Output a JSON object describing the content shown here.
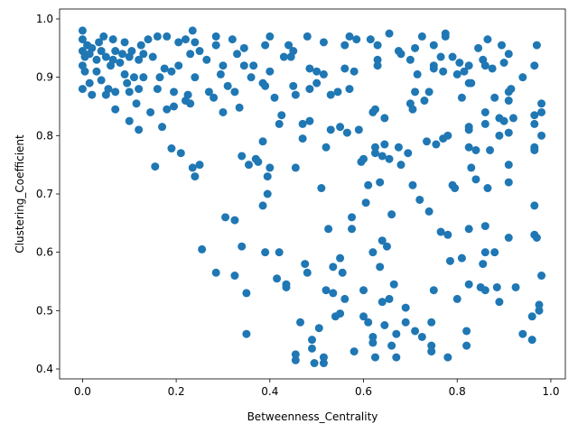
{
  "chart_data": {
    "type": "scatter",
    "xlabel": "Betweenness_Centrality",
    "ylabel": "Clustering_Coefficient",
    "color": "#1f77b4",
    "xlim": [
      -0.049,
      1.031
    ],
    "ylim": [
      0.383,
      1.017
    ],
    "xticks": [
      {
        "value": 0,
        "label": "0.0"
      },
      0.2,
      0.4,
      0.6,
      0.8,
      {
        "value": 1,
        "label": "1.0"
      }
    ],
    "yticks": [
      0.4,
      0.5,
      0.6,
      0.7,
      0.8,
      0.9,
      {
        "value": 1,
        "label": "1.0"
      }
    ],
    "x": [
      0.0,
      0.0,
      0.0,
      0.005,
      0.0,
      0.005,
      0.0,
      0.01,
      0.015,
      0.02,
      0.015,
      0.02,
      0.03,
      0.03,
      0.035,
      0.04,
      0.04,
      0.045,
      0.05,
      0.05,
      0.055,
      0.06,
      0.065,
      0.065,
      0.07,
      0.07,
      0.07,
      0.08,
      0.085,
      0.09,
      0.09,
      0.095,
      0.1,
      0.1,
      0.1,
      0.105,
      0.11,
      0.115,
      0.12,
      0.12,
      0.12,
      0.125,
      0.13,
      0.13,
      0.14,
      0.145,
      0.15,
      0.16,
      0.16,
      0.165,
      0.17,
      0.175,
      0.18,
      0.18,
      0.19,
      0.19,
      0.195,
      0.195,
      0.205,
      0.205,
      0.155,
      0.21,
      0.22,
      0.22,
      0.225,
      0.23,
      0.23,
      0.235,
      0.235,
      0.24,
      0.24,
      0.24,
      0.25,
      0.25,
      0.255,
      0.265,
      0.27,
      0.28,
      0.285,
      0.285,
      0.285,
      0.295,
      0.3,
      0.3,
      0.305,
      0.31,
      0.32,
      0.325,
      0.325,
      0.325,
      0.33,
      0.335,
      0.34,
      0.34,
      0.345,
      0.345,
      0.35,
      0.35,
      0.355,
      0.36,
      0.365,
      0.37,
      0.375,
      0.385,
      0.385,
      0.385,
      0.39,
      0.39,
      0.39,
      0.395,
      0.395,
      0.4,
      0.4,
      0.4,
      0.41,
      0.415,
      0.42,
      0.42,
      0.425,
      0.43,
      0.435,
      0.435,
      0.44,
      0.445,
      0.45,
      0.45,
      0.455,
      0.455,
      0.455,
      0.455,
      0.465,
      0.47,
      0.47,
      0.475,
      0.48,
      0.48,
      0.485,
      0.485,
      0.485,
      0.49,
      0.49,
      0.495,
      0.5,
      0.5,
      0.505,
      0.51,
      0.515,
      0.515,
      0.515,
      0.515,
      0.52,
      0.52,
      0.525,
      0.53,
      0.53,
      0.535,
      0.535,
      0.54,
      0.545,
      0.55,
      0.55,
      0.55,
      0.555,
      0.56,
      0.56,
      0.56,
      0.565,
      0.57,
      0.57,
      0.575,
      0.575,
      0.58,
      0.58,
      0.585,
      0.59,
      0.595,
      0.6,
      0.6,
      0.6,
      0.605,
      0.61,
      0.61,
      0.615,
      0.62,
      0.62,
      0.62,
      0.62,
      0.625,
      0.625,
      0.625,
      0.625,
      0.63,
      0.63,
      0.63,
      0.635,
      0.635,
      0.64,
      0.64,
      0.64,
      0.645,
      0.645,
      0.645,
      0.65,
      0.655,
      0.655,
      0.655,
      0.66,
      0.66,
      0.665,
      0.67,
      0.67,
      0.675,
      0.675,
      0.68,
      0.68,
      0.69,
      0.69,
      0.695,
      0.7,
      0.7,
      0.705,
      0.705,
      0.71,
      0.71,
      0.71,
      0.715,
      0.72,
      0.725,
      0.725,
      0.73,
      0.735,
      0.74,
      0.74,
      0.745,
      0.745,
      0.745,
      0.75,
      0.75,
      0.75,
      0.75,
      0.755,
      0.765,
      0.765,
      0.77,
      0.77,
      0.775,
      0.775,
      0.78,
      0.78,
      0.78,
      0.785,
      0.79,
      0.79,
      0.795,
      0.8,
      0.8,
      0.805,
      0.81,
      0.81,
      0.815,
      0.82,
      0.82,
      0.825,
      0.825,
      0.825,
      0.825,
      0.825,
      0.825,
      0.825,
      0.83,
      0.83,
      0.84,
      0.84,
      0.845,
      0.85,
      0.855,
      0.855,
      0.86,
      0.86,
      0.86,
      0.86,
      0.86,
      0.86,
      0.865,
      0.865,
      0.87,
      0.875,
      0.88,
      0.88,
      0.885,
      0.89,
      0.89,
      0.89,
      0.895,
      0.9,
      0.9,
      0.91,
      0.91,
      0.91,
      0.91,
      0.91,
      0.91,
      0.91,
      0.915,
      0.92,
      0.925,
      0.94,
      0.94,
      0.96,
      0.96,
      0.965,
      0.965,
      0.965,
      0.965,
      0.965,
      0.965,
      0.965,
      0.97,
      0.97,
      0.975,
      0.975,
      0.98,
      0.98,
      0.98,
      0.98
    ],
    "values": [
      0.98,
      0.965,
      0.945,
      0.935,
      0.92,
      0.91,
      0.88,
      0.955,
      0.94,
      0.95,
      0.89,
      0.87,
      0.93,
      0.91,
      0.96,
      0.945,
      0.895,
      0.97,
      0.935,
      0.87,
      0.88,
      0.92,
      0.965,
      0.93,
      0.945,
      0.875,
      0.845,
      0.925,
      0.94,
      0.96,
      0.905,
      0.89,
      0.935,
      0.875,
      0.825,
      0.945,
      0.9,
      0.855,
      0.93,
      0.88,
      0.81,
      0.955,
      0.94,
      0.9,
      0.965,
      0.84,
      0.935,
      0.97,
      0.88,
      0.9,
      0.815,
      0.915,
      0.97,
      0.845,
      0.91,
      0.778,
      0.875,
      0.85,
      0.96,
      0.92,
      0.747,
      0.77,
      0.965,
      0.86,
      0.87,
      0.94,
      0.855,
      0.98,
      0.745,
      0.96,
      0.9,
      0.73,
      0.945,
      0.75,
      0.605,
      0.93,
      0.875,
      0.865,
      0.955,
      0.97,
      0.565,
      0.905,
      0.92,
      0.84,
      0.66,
      0.885,
      0.965,
      0.875,
      0.655,
      0.56,
      0.94,
      0.848,
      0.765,
      0.61,
      0.95,
      0.92,
      0.53,
      0.46,
      0.75,
      0.9,
      0.92,
      0.76,
      0.755,
      0.89,
      0.79,
      0.68,
      0.955,
      0.885,
      0.6,
      0.73,
      0.7,
      0.97,
      0.91,
      0.745,
      0.865,
      0.555,
      0.6,
      0.82,
      0.835,
      0.935,
      0.545,
      0.54,
      0.955,
      0.935,
      0.945,
      0.885,
      0.87,
      0.745,
      0.425,
      0.415,
      0.48,
      0.82,
      0.795,
      0.58,
      0.97,
      0.565,
      0.915,
      0.88,
      0.825,
      0.45,
      0.435,
      0.41,
      0.91,
      0.89,
      0.47,
      0.71,
      0.905,
      0.96,
      0.42,
      0.41,
      0.78,
      0.535,
      0.64,
      0.87,
      0.81,
      0.575,
      0.53,
      0.49,
      0.875,
      0.815,
      0.59,
      0.495,
      0.565,
      0.955,
      0.915,
      0.52,
      0.805,
      0.88,
      0.97,
      0.64,
      0.66,
      0.91,
      0.43,
      0.965,
      0.81,
      0.755,
      0.76,
      0.535,
      0.49,
      0.685,
      0.715,
      0.48,
      0.965,
      0.84,
      0.6,
      0.455,
      0.445,
      0.845,
      0.78,
      0.77,
      0.42,
      0.955,
      0.93,
      0.92,
      0.72,
      0.575,
      0.765,
      0.62,
      0.515,
      0.83,
      0.785,
      0.475,
      0.61,
      0.975,
      0.76,
      0.52,
      0.44,
      0.665,
      0.545,
      0.42,
      0.46,
      0.945,
      0.78,
      0.94,
      0.75,
      0.48,
      0.505,
      0.77,
      0.93,
      0.855,
      0.845,
      0.715,
      0.95,
      0.875,
      0.465,
      0.905,
      0.69,
      0.97,
      0.455,
      0.86,
      0.79,
      0.875,
      0.67,
      0.48,
      0.44,
      0.43,
      0.92,
      0.915,
      0.955,
      0.535,
      0.785,
      0.935,
      0.635,
      0.91,
      0.795,
      0.975,
      0.97,
      0.8,
      0.42,
      0.63,
      0.585,
      0.935,
      0.715,
      0.71,
      0.905,
      0.52,
      0.925,
      0.865,
      0.59,
      0.91,
      0.465,
      0.44,
      0.92,
      0.89,
      0.815,
      0.81,
      0.78,
      0.64,
      0.545,
      0.89,
      0.745,
      0.725,
      0.775,
      0.95,
      0.54,
      0.93,
      0.58,
      0.92,
      0.84,
      0.82,
      0.645,
      0.6,
      0.535,
      0.965,
      0.71,
      0.775,
      0.915,
      0.865,
      0.6,
      0.54,
      0.83,
      0.8,
      0.515,
      0.955,
      0.825,
      0.925,
      0.94,
      0.875,
      0.86,
      0.805,
      0.75,
      0.72,
      0.625,
      0.88,
      0.83,
      0.54,
      0.9,
      0.46,
      0.49,
      0.45,
      0.92,
      0.835,
      0.82,
      0.78,
      0.775,
      0.68,
      0.63,
      0.955,
      0.625,
      0.51,
      0.5,
      0.855,
      0.84,
      0.8,
      0.56
    ]
  }
}
